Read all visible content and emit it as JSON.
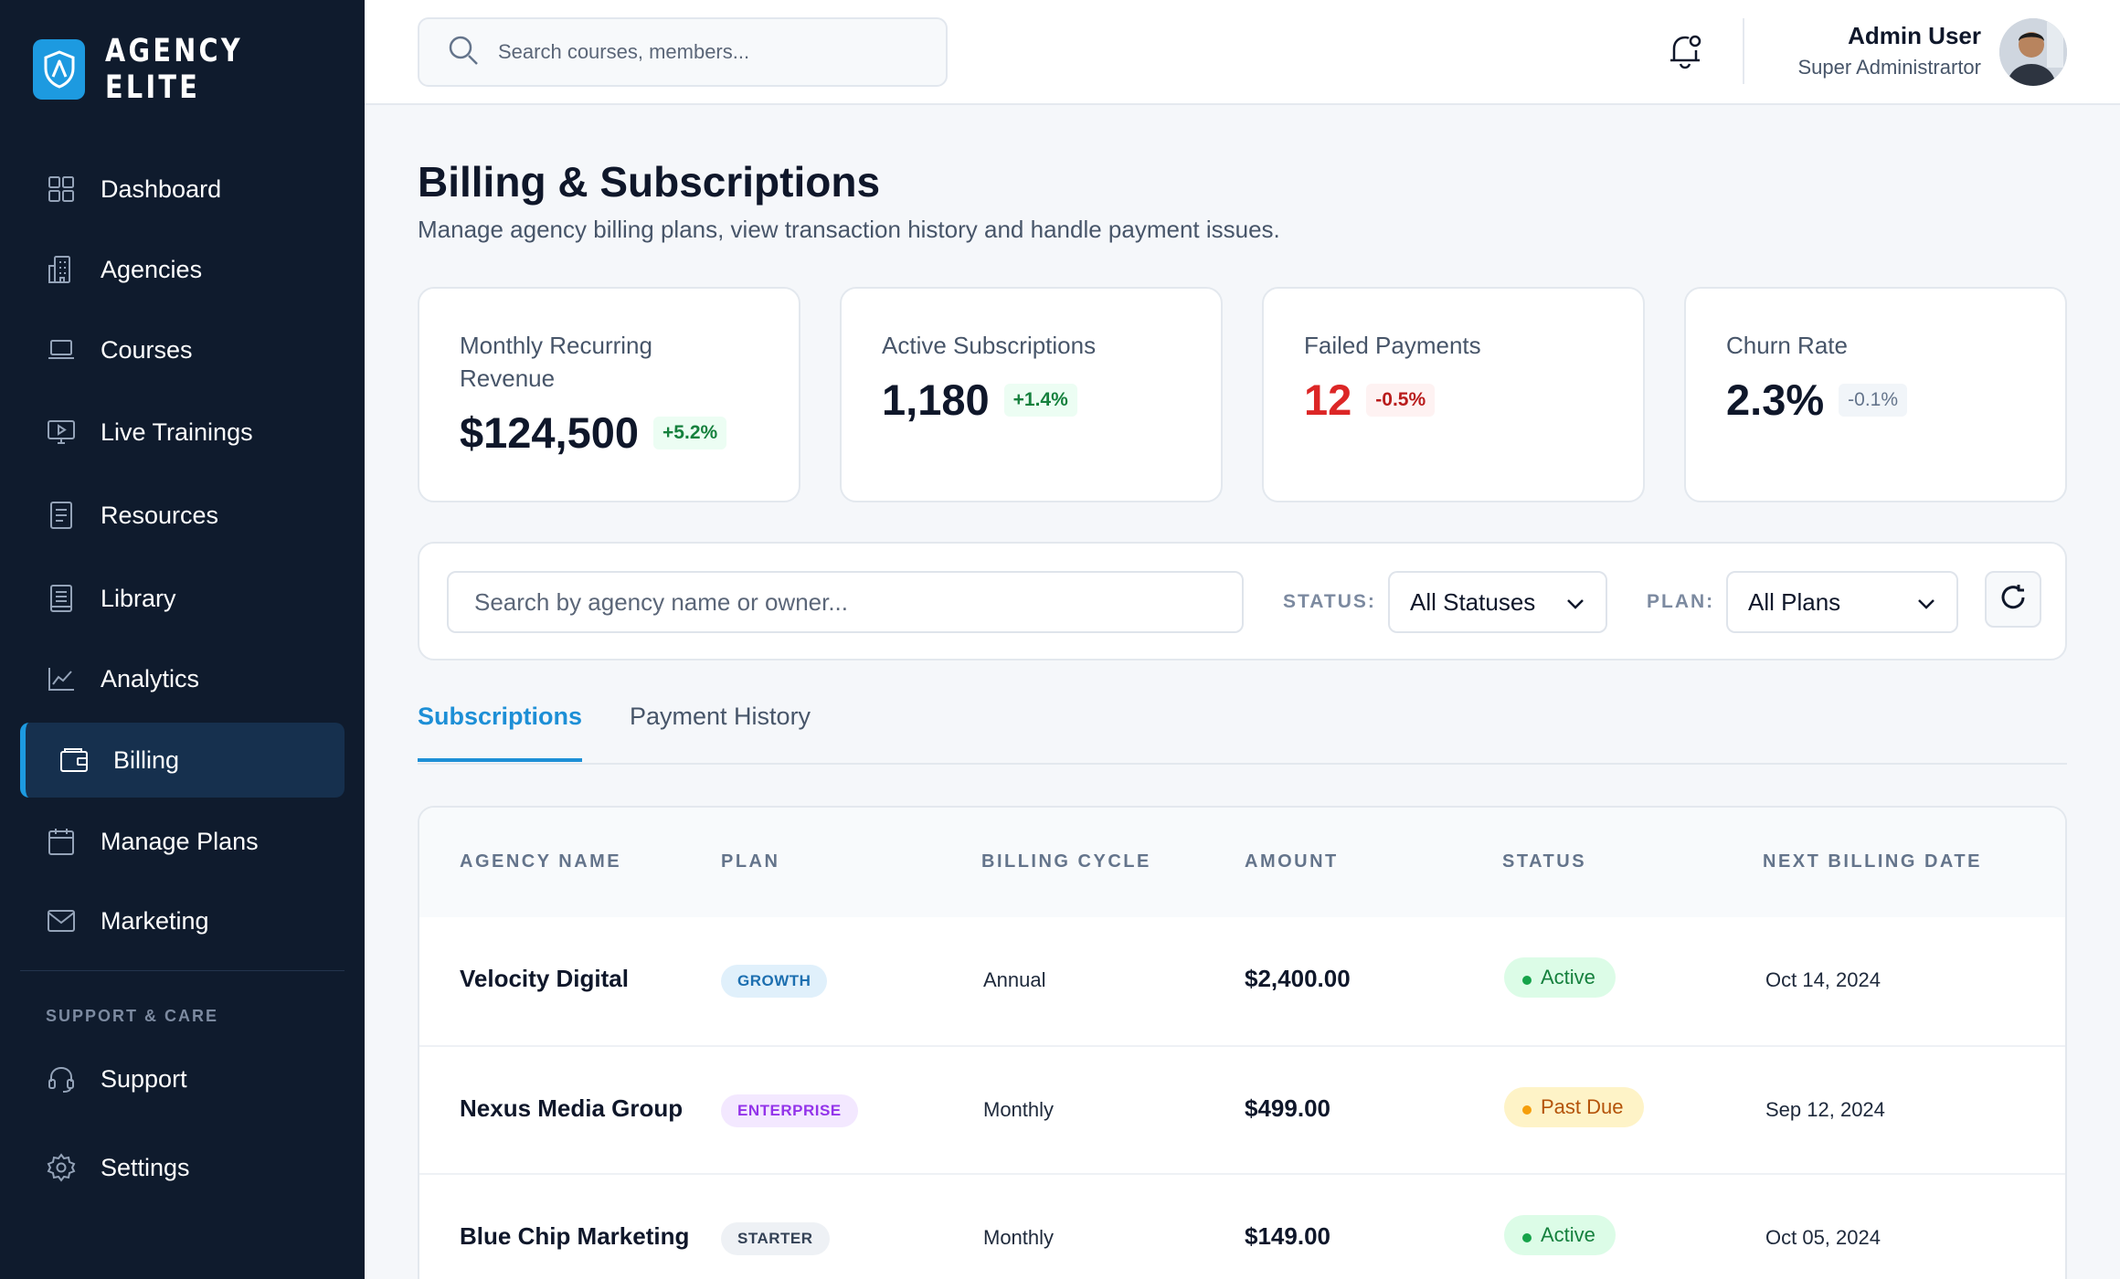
{
  "brand": {
    "name": "AGENCY ELITE"
  },
  "sidebar": {
    "items": [
      {
        "label": "Dashboard",
        "icon": "grid-icon"
      },
      {
        "label": "Agencies",
        "icon": "building-icon"
      },
      {
        "label": "Courses",
        "icon": "laptop-icon"
      },
      {
        "label": "Live Trainings",
        "icon": "monitor-play-icon"
      },
      {
        "label": "Resources",
        "icon": "document-icon"
      },
      {
        "label": "Library",
        "icon": "book-icon"
      },
      {
        "label": "Analytics",
        "icon": "line-chart-icon"
      },
      {
        "label": "Billing",
        "icon": "wallet-icon",
        "active": true
      },
      {
        "label": "Manage Plans",
        "icon": "calendar-icon"
      },
      {
        "label": "Marketing",
        "icon": "mail-icon"
      }
    ],
    "section_title": "SUPPORT & CARE",
    "support_items": [
      {
        "label": "Support",
        "icon": "headset-icon"
      },
      {
        "label": "Settings",
        "icon": "gear-icon"
      }
    ]
  },
  "topbar": {
    "search_placeholder": "Search courses, members...",
    "user_name": "Admin User",
    "user_role": "Super Administrartor"
  },
  "page": {
    "title": "Billing & Subscriptions",
    "subtitle": "Manage agency billing plans, view transaction history and handle payment issues."
  },
  "stats": [
    {
      "label": "Monthly Recurring Revenue",
      "value": "$124,500",
      "delta": "+5.2%",
      "trend": "up"
    },
    {
      "label": "Active Subscriptions",
      "value": "1,180",
      "delta": "+1.4%",
      "trend": "up"
    },
    {
      "label": "Failed Payments",
      "value": "12",
      "delta": "-0.5%",
      "trend": "down"
    },
    {
      "label": "Churn Rate",
      "value": "2.3%",
      "delta": "-0.1%",
      "trend": "muted"
    }
  ],
  "filters": {
    "search_placeholder": "Search by agency name or owner...",
    "status_label": "STATUS:",
    "status_value": "All Statuses",
    "plan_label": "PLAN:",
    "plan_value": "All Plans"
  },
  "tabs": [
    {
      "label": "Subscriptions",
      "active": true
    },
    {
      "label": "Payment History",
      "active": false
    }
  ],
  "table": {
    "headers": [
      "AGENCY NAME",
      "PLAN",
      "BILLING CYCLE",
      "AMOUNT",
      "STATUS",
      "NEXT BILLING DATE"
    ],
    "rows": [
      {
        "agency": "Velocity Digital",
        "plan": "GROWTH",
        "cycle": "Annual",
        "amount": "$2,400.00",
        "status": "Active",
        "next": "Oct 14, 2024"
      },
      {
        "agency": "Nexus Media Group",
        "plan": "ENTERPRISE",
        "cycle": "Monthly",
        "amount": "$499.00",
        "status": "Past Due",
        "next": "Sep 12, 2024"
      },
      {
        "agency": "Blue Chip Marketing",
        "plan": "STARTER",
        "cycle": "Monthly",
        "amount": "$149.00",
        "status": "Active",
        "next": "Oct 05, 2024"
      }
    ]
  },
  "colors": {
    "accent": "#1d8fd6",
    "sidebar_bg": "#0f1b2d",
    "active_green": "#16a34a",
    "past_due_amber": "#b45309"
  }
}
